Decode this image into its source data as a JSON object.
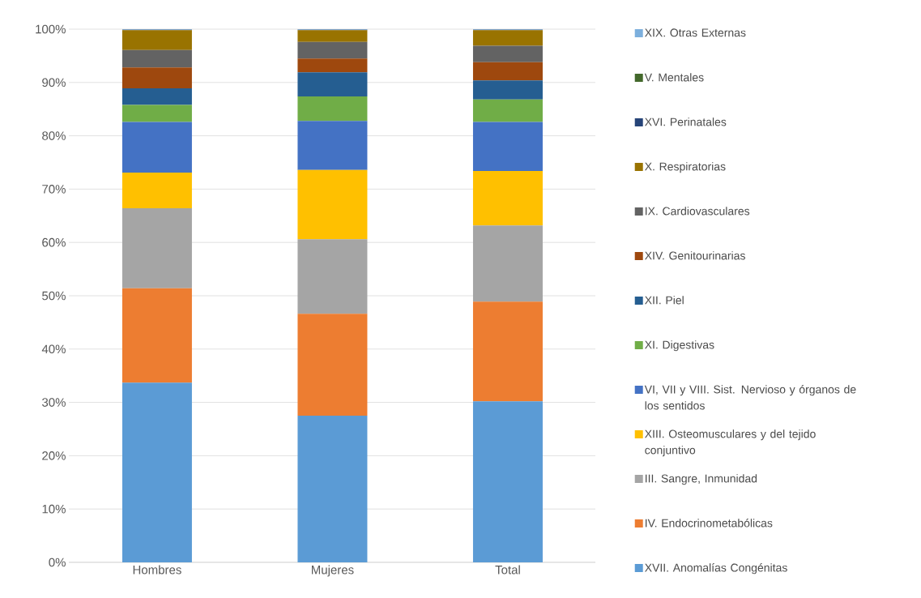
{
  "chart_data": {
    "type": "bar",
    "stacked": true,
    "categories": [
      "Hombres",
      "Mujeres",
      "Total"
    ],
    "ylim": [
      0,
      100
    ],
    "yticks": [
      {
        "value": 0,
        "label": "0%"
      },
      {
        "value": 10,
        "label": "10%"
      },
      {
        "value": 20,
        "label": "20%"
      },
      {
        "value": 30,
        "label": "30%"
      },
      {
        "value": 40,
        "label": "40%"
      },
      {
        "value": 50,
        "label": "50%"
      },
      {
        "value": 60,
        "label": "60%"
      },
      {
        "value": 70,
        "label": "70%"
      },
      {
        "value": 80,
        "label": "80%"
      },
      {
        "value": 90,
        "label": "90%"
      },
      {
        "value": 100,
        "label": "100%"
      }
    ],
    "grid": "y",
    "legend": "right",
    "series": [
      {
        "name": "XVII. Anomalías Congénitas",
        "color": "#5b9bd5",
        "values": [
          33.7,
          27.5,
          30.2
        ]
      },
      {
        "name": "IV. Endocrinometabólicas",
        "color": "#ed7d31",
        "values": [
          17.7,
          19.1,
          18.7
        ]
      },
      {
        "name": "III. Sangre, Inmunidad",
        "color": "#a5a5a5",
        "values": [
          15.0,
          14.0,
          14.3
        ]
      },
      {
        "name": "XIII. Osteomusculares y del tejido conjuntivo",
        "color": "#ffc000",
        "values": [
          6.7,
          13.0,
          10.2
        ]
      },
      {
        "name": "VI, VII y VIII. Sist. Nervioso y órganos de los sentidos",
        "color": "#4472c4",
        "values": [
          9.5,
          9.2,
          9.2
        ]
      },
      {
        "name": "XI. Digestivas",
        "color": "#70ad47",
        "values": [
          3.2,
          4.6,
          4.2
        ]
      },
      {
        "name": "XII. Piel",
        "color": "#255e91",
        "values": [
          3.1,
          4.5,
          3.6
        ]
      },
      {
        "name": "XIV. Genitourinarias",
        "color": "#9e480e",
        "values": [
          3.9,
          2.6,
          3.4
        ]
      },
      {
        "name": "IX. Cardiovasculares",
        "color": "#636363",
        "values": [
          3.3,
          3.1,
          3.1
        ]
      },
      {
        "name": "X. Respiratorias",
        "color": "#997300",
        "values": [
          3.7,
          2.2,
          2.9
        ]
      },
      {
        "name": "XVI. Perinatales",
        "color": "#264478",
        "values": [
          0.1,
          0.1,
          0.1
        ]
      },
      {
        "name": "V. Mentales",
        "color": "#43682b",
        "values": [
          0,
          0,
          0
        ]
      },
      {
        "name": "XIX. Otras Externas",
        "color": "#7cafdd",
        "values": [
          0.1,
          0.1,
          0.1
        ]
      }
    ]
  }
}
